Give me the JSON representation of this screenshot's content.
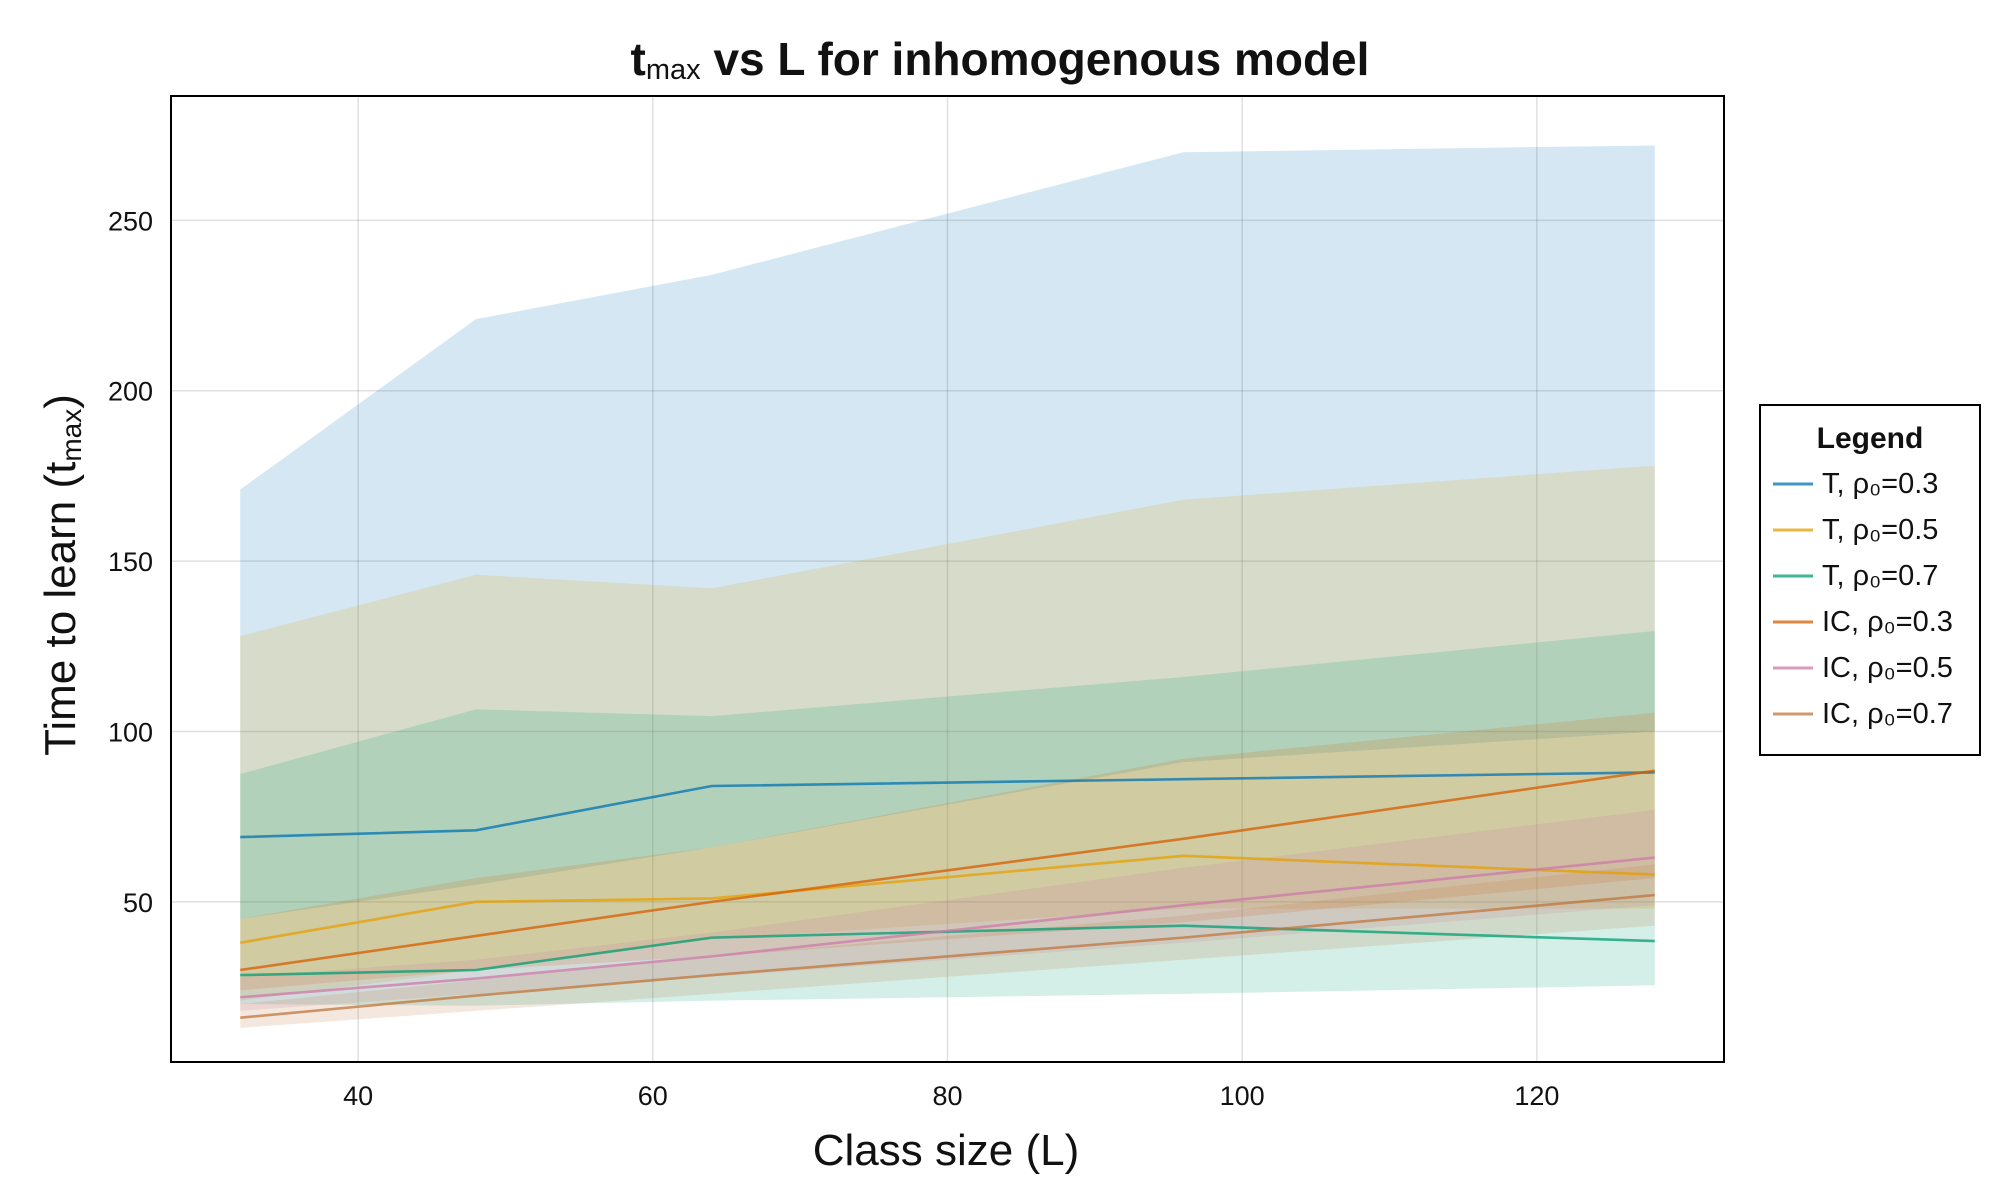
{
  "chart_data": {
    "type": "line",
    "title": {
      "main": "t",
      "sub": "max",
      "rest": " vs L for inhomogenous model"
    },
    "xlabel": "Class size (L)",
    "ylabel": {
      "main": "Time to learn (t",
      "sub": "max",
      "end": ")"
    },
    "xlim": [
      27.3,
      132.7
    ],
    "ylim": [
      3,
      286.5
    ],
    "xticks": [
      40,
      60,
      80,
      100,
      120
    ],
    "yticks": [
      50,
      100,
      150,
      200,
      250
    ],
    "grid": true,
    "legend": {
      "title": "Legend",
      "position": "right"
    },
    "x": [
      32,
      48,
      64,
      96,
      128
    ],
    "series": [
      {
        "name": "T, ρ₀=0.3",
        "color": "#0072b2",
        "values": [
          69,
          71,
          84,
          86,
          88
        ],
        "band_lower": [
          45,
          55,
          66,
          91,
          100
        ],
        "band_upper": [
          171,
          221,
          234,
          270,
          272
        ]
      },
      {
        "name": "T, ρ₀=0.5",
        "color": "#e69f00",
        "values": [
          38,
          50,
          51,
          63.5,
          58
        ],
        "band_lower": [
          21,
          30,
          39,
          48,
          48
        ],
        "band_upper": [
          128,
          146,
          142,
          168,
          178
        ]
      },
      {
        "name": "T, ρ₀=0.7",
        "color": "#009e73",
        "values": [
          28.5,
          30,
          39.5,
          43,
          38.5
        ],
        "band_lower": [
          20,
          19.5,
          21,
          23,
          25.5
        ],
        "band_upper": [
          87.5,
          106.5,
          104.5,
          116,
          129.5
        ]
      },
      {
        "name": "IC, ρ₀=0.3",
        "color": "#d55e00",
        "values": [
          30,
          40,
          50,
          68.5,
          88.5
        ],
        "band_lower": [
          24,
          30,
          34,
          44,
          57
        ],
        "band_upper": [
          45,
          57,
          66,
          92,
          105.5
        ]
      },
      {
        "name": "IC, ρ₀=0.5",
        "color": "#cc79a7",
        "values": [
          22,
          27.5,
          34,
          49,
          63
        ],
        "band_lower": [
          18,
          23,
          28,
          38,
          49
        ],
        "band_upper": [
          28,
          33,
          41,
          60,
          77
        ]
      },
      {
        "name": "IC, ρ₀=0.7",
        "color": "#c0763c",
        "values": [
          16,
          22.5,
          28.5,
          39.5,
          52
        ],
        "band_lower": [
          13,
          18,
          23,
          33,
          43
        ],
        "band_upper": [
          20,
          27,
          34,
          46,
          61
        ]
      }
    ]
  }
}
